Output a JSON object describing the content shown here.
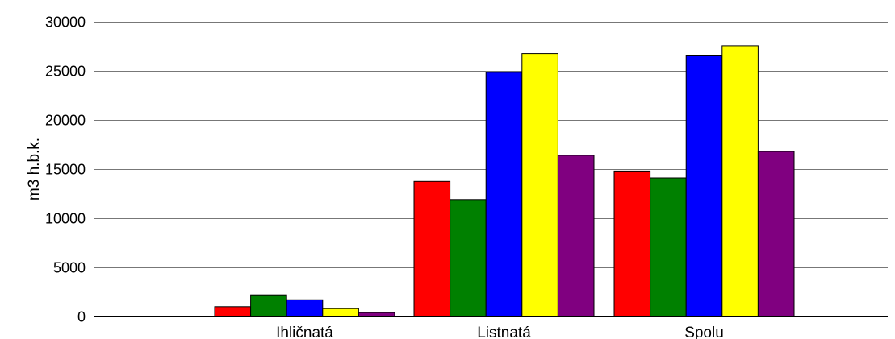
{
  "chart_data": {
    "type": "bar",
    "title": "",
    "xlabel": "",
    "ylabel": "m3 h.b.k.",
    "ylim": [
      0,
      30000
    ],
    "yticks": [
      0,
      5000,
      10000,
      15000,
      20000,
      25000,
      30000
    ],
    "grid": true,
    "legend": "none",
    "categories": [
      "Ihličnatá",
      "Listnatá",
      "Spolu"
    ],
    "series": [
      {
        "color": "#ff0000",
        "values": [
          1000,
          13750,
          14800
        ]
      },
      {
        "color": "#008000",
        "values": [
          2200,
          11900,
          14100
        ]
      },
      {
        "color": "#0000ff",
        "values": [
          1700,
          24850,
          26600
        ]
      },
      {
        "color": "#ffff00",
        "values": [
          800,
          26750,
          27550
        ]
      },
      {
        "color": "#800080",
        "values": [
          400,
          16400,
          16800
        ]
      }
    ]
  }
}
